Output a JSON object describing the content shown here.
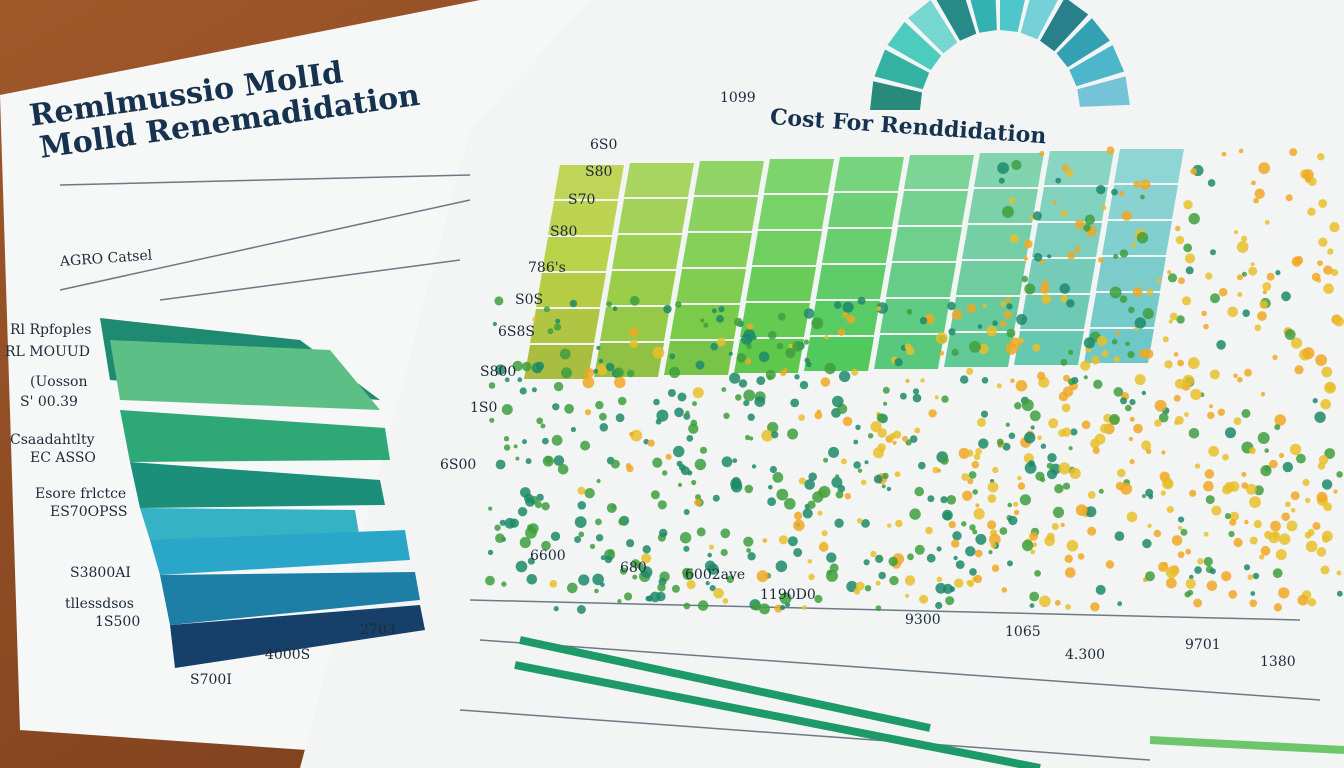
{
  "left_paper": {
    "title": [
      "Remlmussio MolId",
      "Molld Renemadidation"
    ],
    "subtitle": "AGRO Catsel",
    "labels": [
      "Rl Rpfoples",
      "RL MOUUD",
      "(Uosson",
      "S' 00.39",
      "Csaadahtlty",
      "EC ASSO",
      "Esore frlctce",
      "ES70OPSS",
      "S3800AI",
      "tllessdsos",
      "1S500"
    ],
    "bottom_labels": [
      "S700I",
      "4000S",
      "2703"
    ]
  },
  "right_paper": {
    "badge": "1099",
    "title": "Cost For Renddidation",
    "y_labels": [
      "6S0",
      "S80",
      "S70",
      "S80",
      "786's",
      "S0S",
      "6S8S",
      "S800",
      "1S0",
      "6S00"
    ],
    "x_labels": [
      "6600",
      "680",
      "6002ave",
      "1190D0",
      "9300",
      "1065",
      "4.300",
      "9701",
      "1380"
    ]
  }
}
